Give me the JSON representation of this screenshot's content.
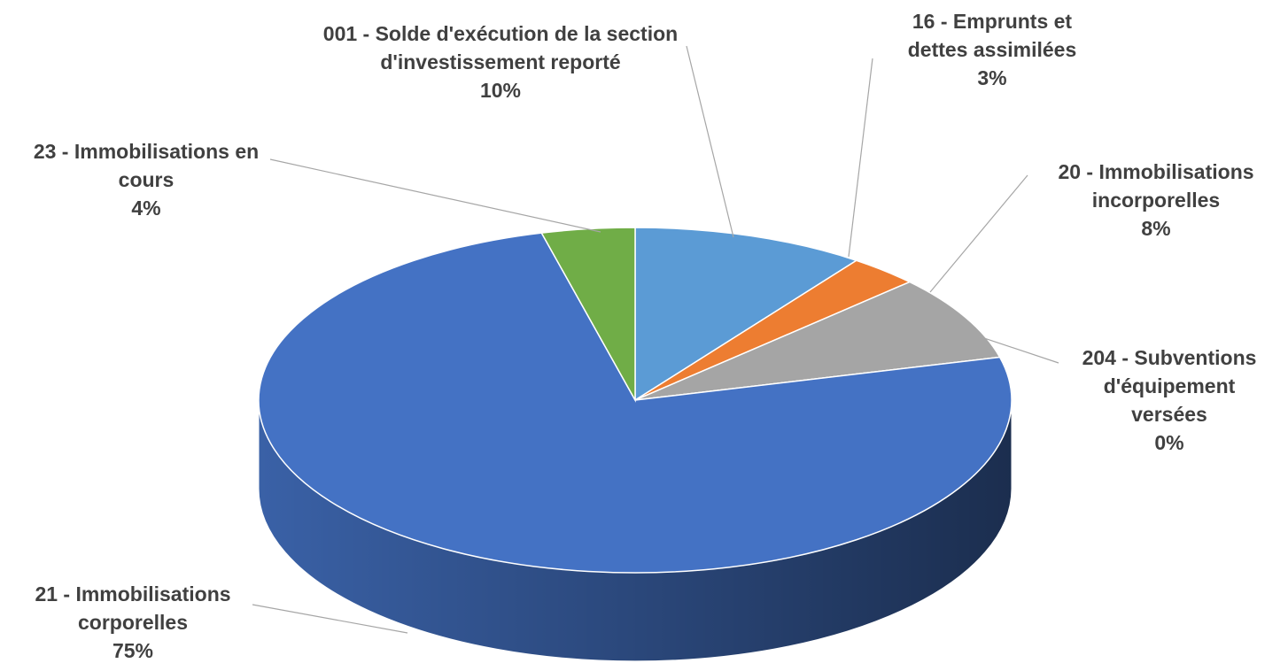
{
  "chart_data": {
    "type": "pie",
    "categories": [
      "001 - Solde d'exécution de la section d'investissement reporté",
      "16 - Emprunts et dettes assimilées",
      "20 - Immobilisations incorporelles",
      "204 - Subventions d'équipement versées",
      "21 - Immobilisations corporelles",
      "23 - Immobilisations en cours"
    ],
    "values": [
      10,
      3,
      8,
      0,
      75,
      4
    ],
    "value_labels": [
      "10%",
      "3%",
      "8%",
      "0%",
      "75%",
      "4%"
    ],
    "colors": [
      "#5b9bd5",
      "#ed7d31",
      "#a5a5a5",
      "#ffc000",
      "#4472c4",
      "#70ad47"
    ]
  }
}
